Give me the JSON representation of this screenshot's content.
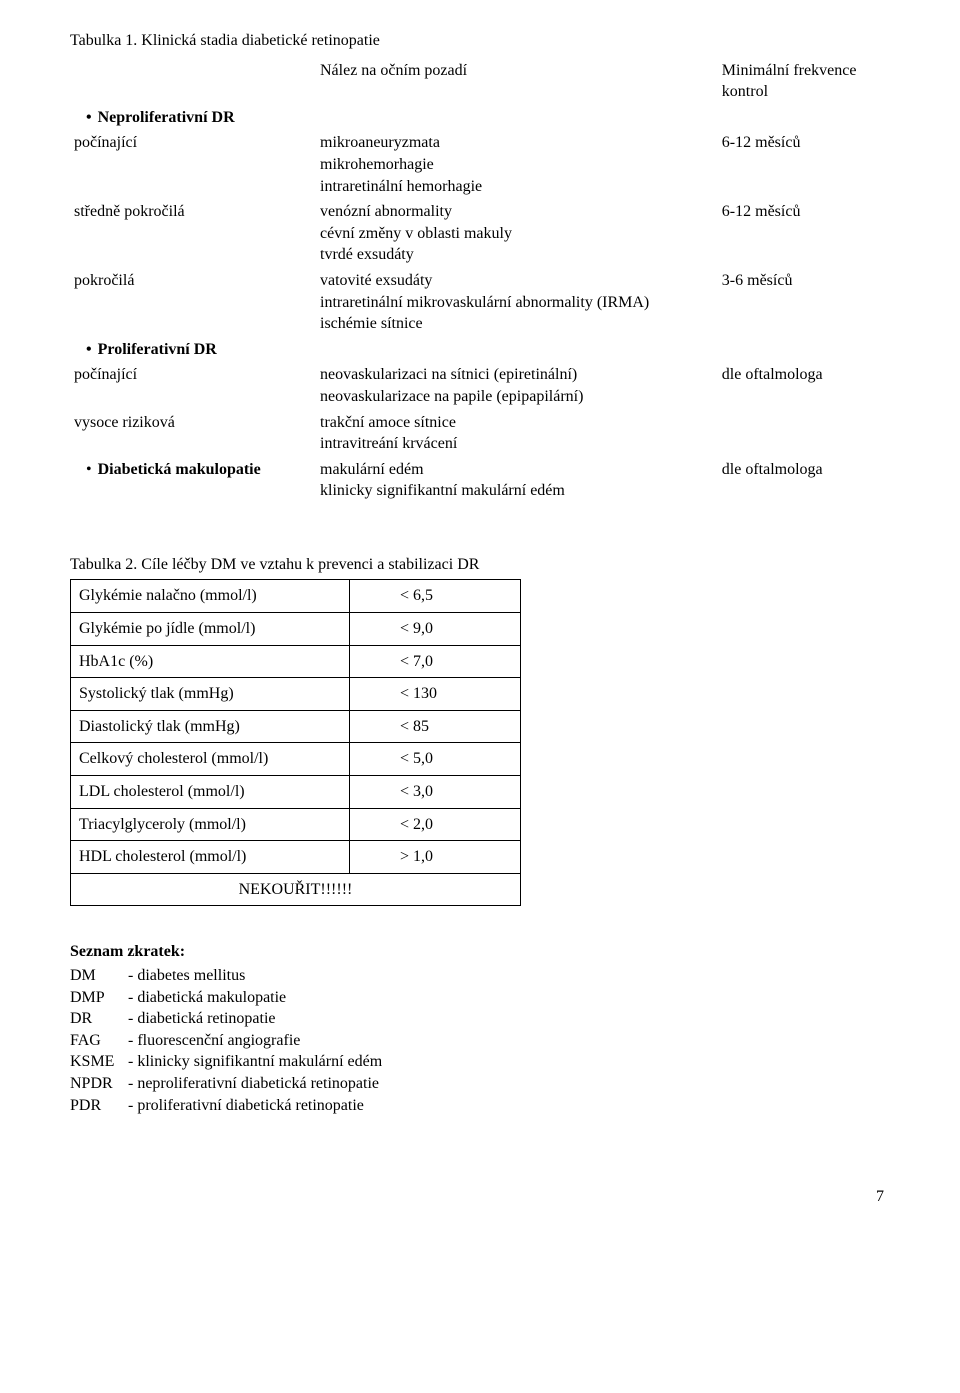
{
  "tabulka1": {
    "title": "Tabulka 1. Klinická stadia diabetické retinopatie",
    "header": {
      "finding": "Nález na očním pozadí",
      "freq": "Minimální frekvence kontrol"
    },
    "sections": {
      "neprolif": {
        "heading": "Neproliferativní DR",
        "rows": [
          {
            "label": "počínající",
            "finding": "mikroaneuryzmata\nmikrohemorhagie\nintraretinální hemorhagie",
            "freq": "6-12 měsíců"
          },
          {
            "label": "středně pokročilá",
            "finding": "venózní abnormality\ncévní změny v oblasti makuly\ntvrdé exsudáty",
            "freq": "6-12 měsíců"
          },
          {
            "label": "pokročilá",
            "finding": "vatovité exsudáty\nintraretinální mikrovaskulární abnormality (IRMA)\nischémie sítnice",
            "freq": "3-6 měsíců"
          }
        ]
      },
      "prolif": {
        "heading": "Proliferativní DR",
        "rows": [
          {
            "label": "počínající",
            "finding": "neovaskularizaci na sítnici (epiretinální)\nneovaskularizace na papile (epipapilární)",
            "freq": "dle oftalmologa"
          },
          {
            "label": "vysoce riziková",
            "finding": "trakční amoce sítnice\nintravitreání krvácení",
            "freq": ""
          }
        ]
      },
      "makulopatie": {
        "heading": "Diabetická makulopatie",
        "row": {
          "finding": "makulární edém\nklinicky signifikantní makulární edém",
          "freq": "dle oftalmologa"
        }
      }
    }
  },
  "tabulka2": {
    "title": "Tabulka 2. Cíle léčby DM ve vztahu k prevenci a stabilizaci DR",
    "rows": [
      {
        "param": "Glykémie nalačno (mmol/l)",
        "value": "< 6,5"
      },
      {
        "param": "Glykémie po jídle (mmol/l)",
        "value": "< 9,0"
      },
      {
        "param": "HbA1c (%)",
        "value": "< 7,0"
      },
      {
        "param": "Systolický tlak (mmHg)",
        "value": "< 130"
      },
      {
        "param": "Diastolický tlak (mmHg)",
        "value": "< 85"
      },
      {
        "param": "Celkový cholesterol (mmol/l)",
        "value": "< 5,0"
      },
      {
        "param": "LDL cholesterol (mmol/l)",
        "value": "< 3,0"
      },
      {
        "param": "Triacylglyceroly (mmol/l)",
        "value": "< 2,0"
      },
      {
        "param": "HDL cholesterol (mmol/l)",
        "value": "> 1,0"
      }
    ],
    "footer": "NEKOUŘIT!!!!!!"
  },
  "zkratky": {
    "heading": "Seznam zkratek:",
    "items": [
      {
        "code": "DM",
        "text": "- diabetes mellitus"
      },
      {
        "code": "DMP",
        "text": "- diabetická makulopatie"
      },
      {
        "code": "DR",
        "text": "- diabetická retinopatie"
      },
      {
        "code": "FAG",
        "text": "- fluorescenční angiografie"
      },
      {
        "code": "KSME",
        "text": "- klinicky signifikantní makulární edém"
      },
      {
        "code": "NPDR",
        "text": "- neproliferativní diabetická retinopatie"
      },
      {
        "code": "PDR",
        "text": "- proliferativní diabetická retinopatie"
      }
    ]
  },
  "page_number": "7"
}
